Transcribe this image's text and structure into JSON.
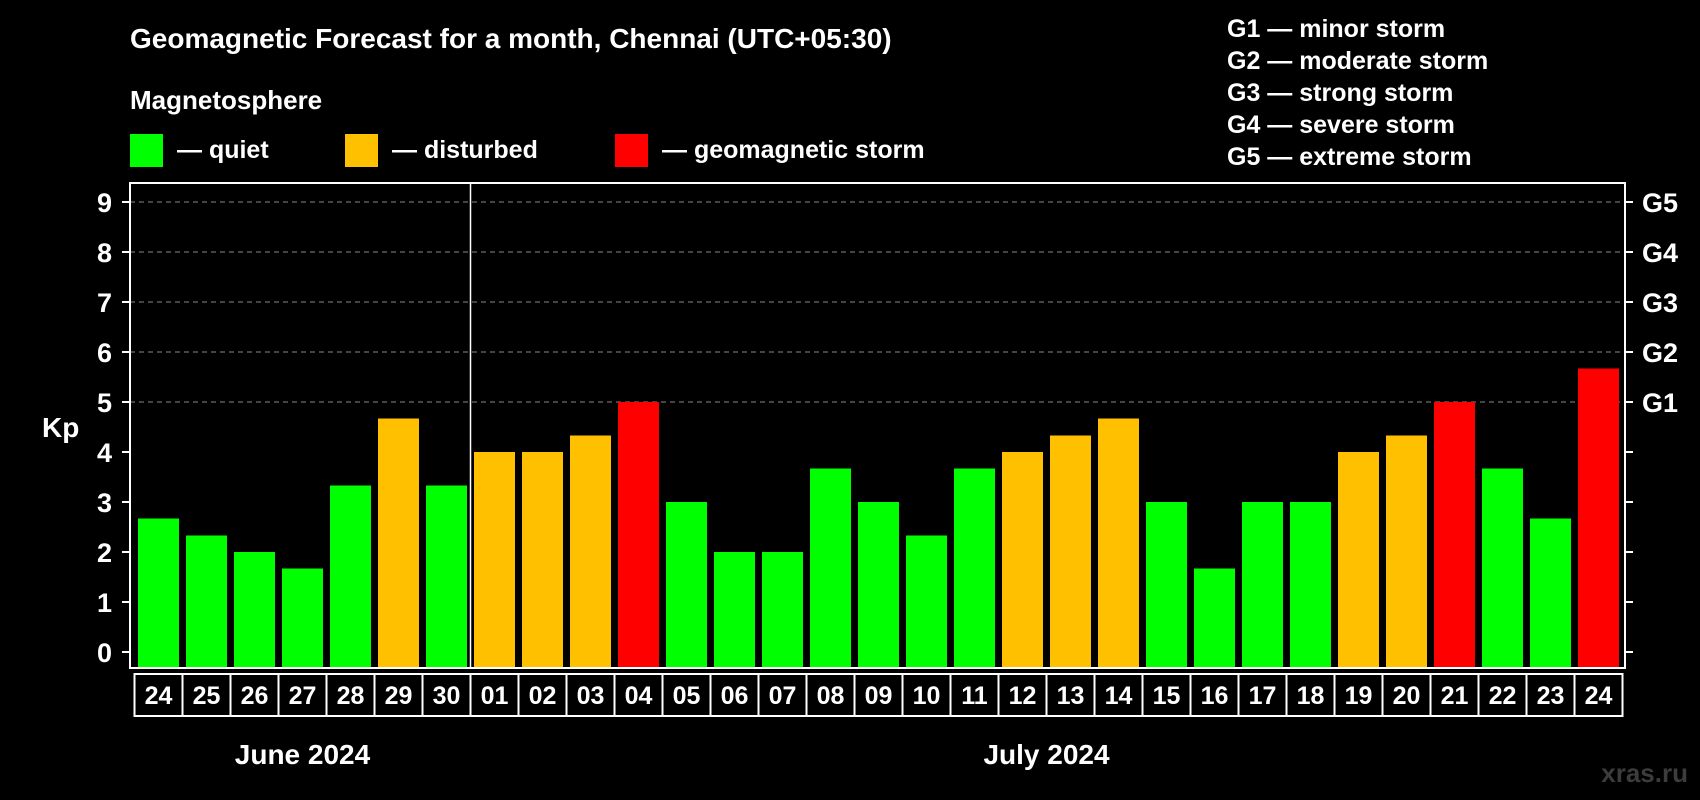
{
  "colors": {
    "background": "#000000",
    "quiet": "#00ff00",
    "disturbed": "#ffc000",
    "storm": "#ff0000",
    "text": "#ffffff",
    "grid": "#888888",
    "watermark": "#3c3c3c"
  },
  "chart_data": {
    "type": "bar",
    "title": "Geomagnetic Forecast for a month, Chennai (UTC+05:30)",
    "subtitle": "Magnetosphere",
    "ylabel": "Kp",
    "ylim": [
      0,
      9
    ],
    "yticks": [
      "0",
      "1",
      "2",
      "3",
      "4",
      "5",
      "6",
      "7",
      "8",
      "9"
    ],
    "grid_from": 5,
    "storm_ticks": [
      {
        "kp": 5,
        "label": "G1"
      },
      {
        "kp": 6,
        "label": "G2"
      },
      {
        "kp": 7,
        "label": "G3"
      },
      {
        "kp": 8,
        "label": "G4"
      },
      {
        "kp": 9,
        "label": "G5"
      }
    ],
    "legend": [
      {
        "label": "— quiet",
        "status": "quiet"
      },
      {
        "label": "— disturbed",
        "status": "disturbed"
      },
      {
        "label": "— geomagnetic storm",
        "status": "storm"
      }
    ],
    "storm_legend": [
      "G1 — minor storm",
      "G2 — moderate storm",
      "G3 — strong storm",
      "G4 — severe storm",
      "G5 — extreme storm"
    ],
    "categories": [
      "24",
      "25",
      "26",
      "27",
      "28",
      "29",
      "30",
      "01",
      "02",
      "03",
      "04",
      "05",
      "06",
      "07",
      "08",
      "09",
      "10",
      "11",
      "12",
      "13",
      "14",
      "15",
      "16",
      "17",
      "18",
      "19",
      "20",
      "21",
      "22",
      "23",
      "24"
    ],
    "values": [
      2.67,
      2.33,
      2,
      1.67,
      3.33,
      4.67,
      3.33,
      4,
      4,
      4.33,
      5,
      3,
      2,
      2,
      3.67,
      3,
      2.33,
      3.67,
      4,
      4.33,
      4.67,
      3,
      1.67,
      3,
      3,
      4,
      4.33,
      5,
      3.67,
      2.67,
      5.67
    ],
    "status": [
      "quiet",
      "quiet",
      "quiet",
      "quiet",
      "quiet",
      "disturbed",
      "quiet",
      "disturbed",
      "disturbed",
      "disturbed",
      "storm",
      "quiet",
      "quiet",
      "quiet",
      "quiet",
      "quiet",
      "quiet",
      "quiet",
      "disturbed",
      "disturbed",
      "disturbed",
      "quiet",
      "quiet",
      "quiet",
      "quiet",
      "disturbed",
      "disturbed",
      "storm",
      "quiet",
      "quiet",
      "storm"
    ],
    "months": [
      {
        "label": "June 2024",
        "start": 0,
        "count": 7
      },
      {
        "label": "July 2024",
        "start": 7,
        "count": 24
      }
    ]
  },
  "watermark": "xras.ru"
}
